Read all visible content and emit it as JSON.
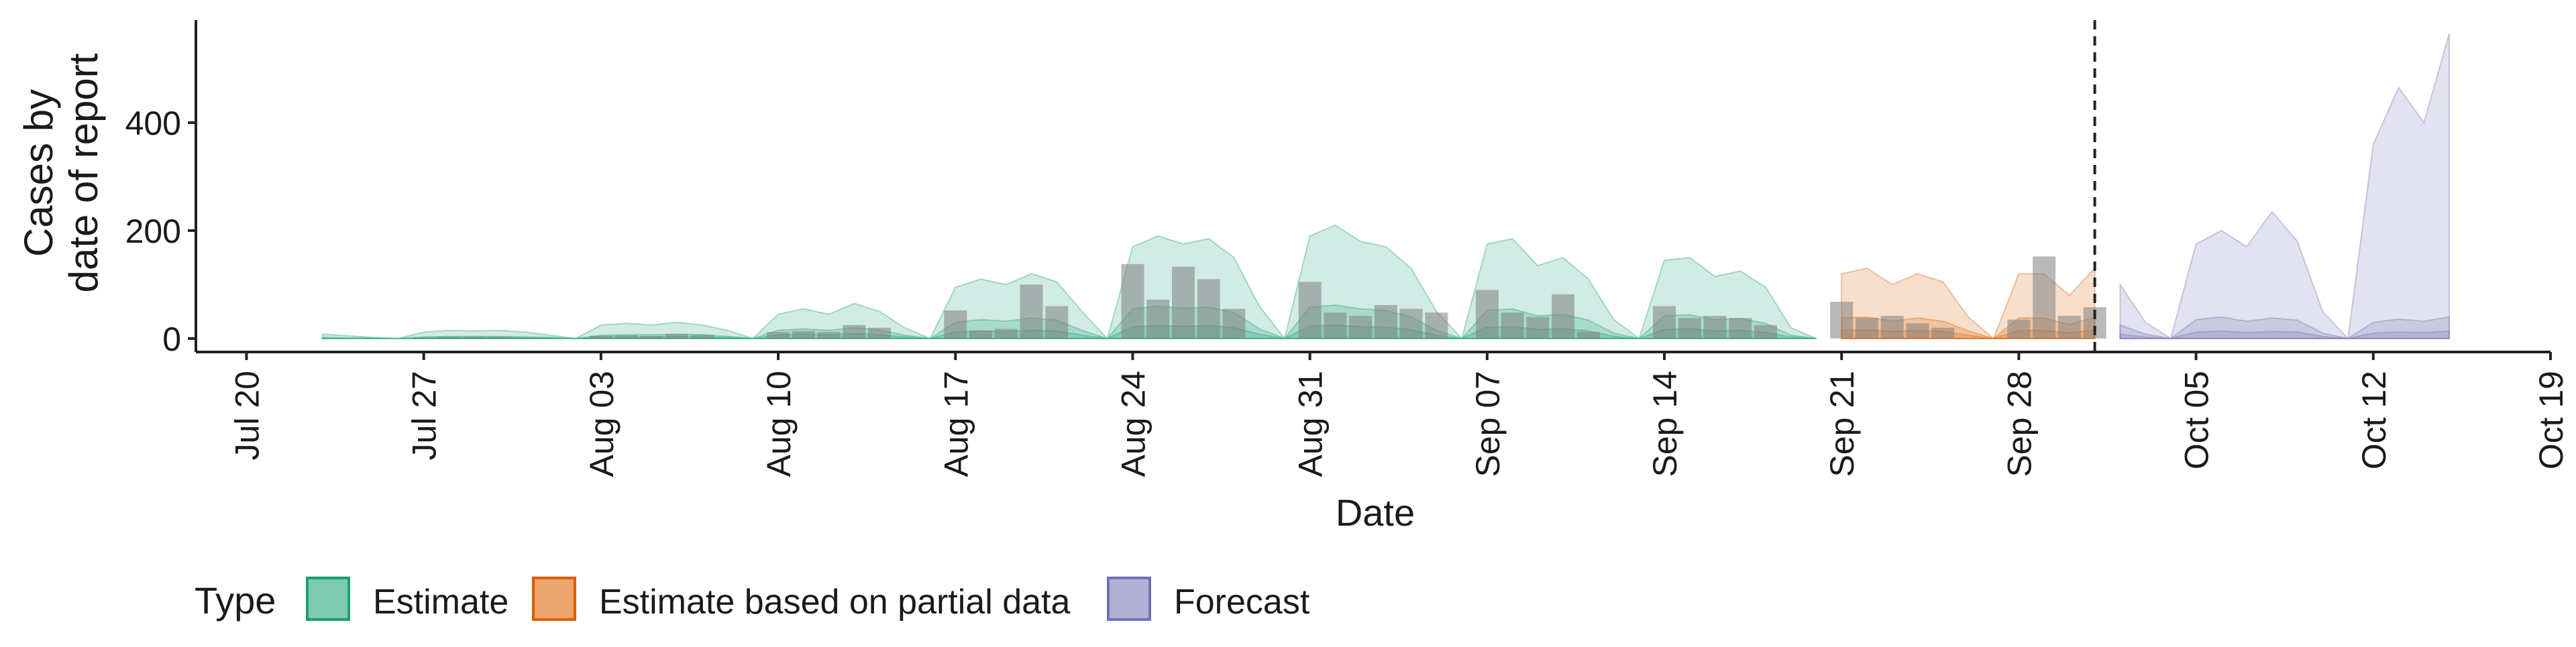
{
  "chart_data": {
    "type": "area",
    "xlabel": "Date",
    "ylabel_lines": [
      "Cases by",
      "date of report"
    ],
    "xlim": [
      "2020-07-18",
      "2020-10-19"
    ],
    "ylim": [
      -25,
      590
    ],
    "yticks": [
      0,
      200,
      400
    ],
    "xticks": [
      {
        "date": "2020-07-20",
        "label": "Jul 20"
      },
      {
        "date": "2020-07-27",
        "label": "Jul 27"
      },
      {
        "date": "2020-08-03",
        "label": "Aug 03"
      },
      {
        "date": "2020-08-10",
        "label": "Aug 10"
      },
      {
        "date": "2020-08-17",
        "label": "Aug 17"
      },
      {
        "date": "2020-08-24",
        "label": "Aug 24"
      },
      {
        "date": "2020-08-31",
        "label": "Aug 31"
      },
      {
        "date": "2020-09-07",
        "label": "Sep 07"
      },
      {
        "date": "2020-09-14",
        "label": "Sep 14"
      },
      {
        "date": "2020-09-21",
        "label": "Sep 21"
      },
      {
        "date": "2020-09-28",
        "label": "Sep 28"
      },
      {
        "date": "2020-10-05",
        "label": "Oct 05"
      },
      {
        "date": "2020-10-12",
        "label": "Oct 12"
      },
      {
        "date": "2020-10-19",
        "label": "Oct 19"
      }
    ],
    "forecast_start_date": "2020-10-01",
    "grid": false,
    "legend": {
      "title": "Type",
      "position": "bottom-left",
      "entries": [
        {
          "label": "Estimate",
          "fill": "#7fc9b0",
          "stroke": "#1b9e77"
        },
        {
          "label": "Estimate based on partial data",
          "fill": "#eba46b",
          "stroke": "#d95f02"
        },
        {
          "label": "Forecast",
          "fill": "#b3b0d6",
          "stroke": "#7570b3"
        }
      ]
    },
    "series": [
      {
        "type": "Estimate",
        "color": "#1b9e77",
        "x": [
          "2020-07-23",
          "2020-07-24",
          "2020-07-25",
          "2020-07-26",
          "2020-07-27",
          "2020-07-28",
          "2020-07-29",
          "2020-07-30",
          "2020-07-31",
          "2020-08-01",
          "2020-08-02",
          "2020-08-03",
          "2020-08-04",
          "2020-08-05",
          "2020-08-06",
          "2020-08-07",
          "2020-08-08",
          "2020-08-09",
          "2020-08-10",
          "2020-08-11",
          "2020-08-12",
          "2020-08-13",
          "2020-08-14",
          "2020-08-15",
          "2020-08-16",
          "2020-08-17",
          "2020-08-18",
          "2020-08-19",
          "2020-08-20",
          "2020-08-21",
          "2020-08-22",
          "2020-08-23",
          "2020-08-24",
          "2020-08-25",
          "2020-08-26",
          "2020-08-27",
          "2020-08-28",
          "2020-08-29",
          "2020-08-30",
          "2020-08-31",
          "2020-09-01",
          "2020-09-02",
          "2020-09-03",
          "2020-09-04",
          "2020-09-05",
          "2020-09-06",
          "2020-09-07",
          "2020-09-08",
          "2020-09-09",
          "2020-09-10",
          "2020-09-11",
          "2020-09-12",
          "2020-09-13",
          "2020-09-14",
          "2020-09-15",
          "2020-09-16",
          "2020-09-17",
          "2020-09-18",
          "2020-09-19",
          "2020-09-20"
        ],
        "upper90": [
          8,
          5,
          2,
          0,
          12,
          15,
          14,
          15,
          12,
          6,
          0,
          25,
          28,
          25,
          30,
          25,
          15,
          0,
          45,
          55,
          45,
          65,
          50,
          20,
          0,
          95,
          110,
          100,
          120,
          105,
          50,
          0,
          170,
          190,
          175,
          185,
          150,
          60,
          0,
          190,
          210,
          180,
          170,
          130,
          50,
          0,
          175,
          185,
          135,
          150,
          110,
          35,
          0,
          145,
          150,
          115,
          125,
          95,
          20,
          0
        ],
        "upper50": [
          2,
          1,
          1,
          0,
          3,
          4,
          4,
          4,
          3,
          2,
          0,
          6,
          7,
          7,
          8,
          7,
          4,
          0,
          15,
          18,
          15,
          20,
          16,
          6,
          0,
          30,
          35,
          32,
          38,
          34,
          15,
          0,
          55,
          60,
          56,
          58,
          48,
          18,
          0,
          58,
          62,
          55,
          52,
          40,
          15,
          0,
          52,
          55,
          42,
          45,
          34,
          10,
          0,
          42,
          44,
          35,
          37,
          28,
          6,
          0
        ],
        "upper20": [
          1,
          0,
          0,
          0,
          1,
          2,
          2,
          2,
          1,
          1,
          0,
          3,
          3,
          3,
          4,
          3,
          2,
          0,
          7,
          8,
          7,
          9,
          7,
          3,
          0,
          12,
          14,
          13,
          15,
          14,
          6,
          0,
          22,
          24,
          23,
          24,
          20,
          8,
          0,
          23,
          25,
          22,
          21,
          16,
          6,
          0,
          21,
          22,
          17,
          18,
          14,
          4,
          0,
          17,
          18,
          14,
          15,
          11,
          3,
          0
        ]
      },
      {
        "type": "Estimate based on partial data",
        "color": "#d95f02",
        "x": [
          "2020-09-21",
          "2020-09-22",
          "2020-09-23",
          "2020-09-24",
          "2020-09-25",
          "2020-09-26",
          "2020-09-27",
          "2020-09-28",
          "2020-09-29",
          "2020-09-30",
          "2020-10-01"
        ],
        "upper90": [
          120,
          130,
          100,
          120,
          105,
          40,
          0,
          120,
          120,
          80,
          130
        ],
        "upper50": [
          38,
          40,
          32,
          38,
          32,
          14,
          0,
          38,
          38,
          26,
          40
        ],
        "upper20": [
          15,
          16,
          13,
          15,
          13,
          6,
          0,
          15,
          15,
          10,
          16
        ]
      },
      {
        "type": "Forecast",
        "color": "#7570b3",
        "x": [
          "2020-10-02",
          "2020-10-03",
          "2020-10-04",
          "2020-10-05",
          "2020-10-06",
          "2020-10-07",
          "2020-10-08",
          "2020-10-09",
          "2020-10-10",
          "2020-10-11",
          "2020-10-12",
          "2020-10-13",
          "2020-10-14",
          "2020-10-15"
        ],
        "upper90": [
          100,
          30,
          0,
          175,
          200,
          170,
          235,
          180,
          50,
          0,
          360,
          465,
          400,
          565
        ],
        "upper50": [
          25,
          8,
          0,
          35,
          40,
          32,
          38,
          34,
          10,
          0,
          30,
          36,
          32,
          40
        ],
        "upper20": [
          8,
          3,
          0,
          12,
          14,
          11,
          13,
          12,
          4,
          0,
          10,
          12,
          11,
          14
        ]
      }
    ],
    "reported_cases": {
      "x": [
        "2020-07-27",
        "2020-07-28",
        "2020-07-29",
        "2020-07-30",
        "2020-07-31",
        "2020-08-03",
        "2020-08-04",
        "2020-08-05",
        "2020-08-06",
        "2020-08-07",
        "2020-08-10",
        "2020-08-11",
        "2020-08-12",
        "2020-08-13",
        "2020-08-14",
        "2020-08-17",
        "2020-08-18",
        "2020-08-19",
        "2020-08-20",
        "2020-08-21",
        "2020-08-24",
        "2020-08-25",
        "2020-08-26",
        "2020-08-27",
        "2020-08-28",
        "2020-08-31",
        "2020-09-01",
        "2020-09-02",
        "2020-09-03",
        "2020-09-04",
        "2020-09-05",
        "2020-09-07",
        "2020-09-08",
        "2020-09-09",
        "2020-09-10",
        "2020-09-11",
        "2020-09-14",
        "2020-09-15",
        "2020-09-16",
        "2020-09-17",
        "2020-09-18",
        "2020-09-21",
        "2020-09-22",
        "2020-09-23",
        "2020-09-24",
        "2020-09-25",
        "2020-09-28",
        "2020-09-29",
        "2020-09-30",
        "2020-10-01"
      ],
      "y": [
        2,
        3,
        3,
        3,
        2,
        5,
        6,
        5,
        8,
        7,
        12,
        14,
        12,
        25,
        20,
        52,
        15,
        18,
        100,
        60,
        138,
        72,
        133,
        110,
        55,
        105,
        48,
        42,
        62,
        55,
        48,
        90,
        48,
        40,
        82,
        12,
        60,
        38,
        42,
        38,
        25,
        68,
        38,
        42,
        28,
        20,
        35,
        152,
        42,
        58
      ]
    }
  }
}
